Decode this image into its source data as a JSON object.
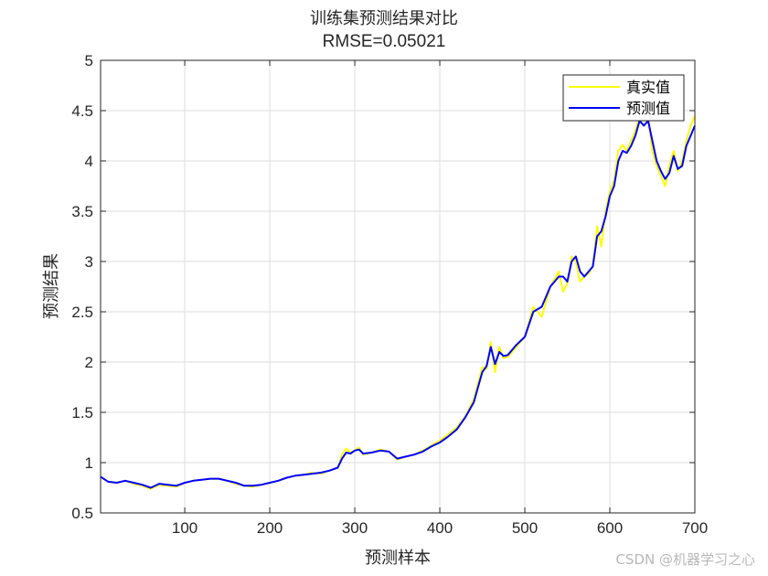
{
  "figure": {
    "title_line1": "训练集预测结果对比",
    "title_line2": "RMSE=0.05021",
    "watermark": "CSDN @机器学习之心"
  },
  "colors": {
    "true_series": "#ffff00",
    "pred_series": "#0000ff",
    "grid": "#dedede",
    "axis": "#262626"
  },
  "chart_data": {
    "type": "line",
    "title": "训练集预测结果对比",
    "subtitle": "RMSE=0.05021",
    "xlabel": "预测样本",
    "ylabel": "预测结果",
    "xlim": [
      1,
      700
    ],
    "ylim": [
      0.5,
      5
    ],
    "xticks": [
      100,
      200,
      300,
      400,
      500,
      600,
      700
    ],
    "yticks": [
      0.5,
      1,
      1.5,
      2,
      2.5,
      3,
      3.5,
      4,
      4.5,
      5
    ],
    "grid": true,
    "legend_position": "top-right",
    "x": [
      1,
      10,
      20,
      30,
      40,
      50,
      60,
      70,
      80,
      90,
      100,
      110,
      120,
      130,
      140,
      150,
      160,
      170,
      180,
      190,
      200,
      210,
      220,
      230,
      240,
      250,
      260,
      270,
      280,
      285,
      290,
      295,
      300,
      305,
      310,
      320,
      330,
      340,
      350,
      360,
      370,
      380,
      390,
      400,
      410,
      420,
      430,
      440,
      450,
      455,
      460,
      465,
      470,
      475,
      480,
      485,
      490,
      500,
      510,
      520,
      530,
      540,
      545,
      550,
      555,
      560,
      565,
      570,
      575,
      580,
      585,
      590,
      595,
      600,
      605,
      610,
      615,
      620,
      625,
      630,
      635,
      640,
      645,
      650,
      655,
      660,
      665,
      670,
      675,
      680,
      685,
      690,
      695,
      700
    ],
    "series": [
      {
        "name": "真实值",
        "values": [
          0.86,
          0.81,
          0.8,
          0.82,
          0.79,
          0.77,
          0.74,
          0.78,
          0.77,
          0.76,
          0.8,
          0.82,
          0.83,
          0.84,
          0.84,
          0.82,
          0.79,
          0.77,
          0.76,
          0.78,
          0.8,
          0.82,
          0.85,
          0.87,
          0.88,
          0.9,
          0.89,
          0.92,
          0.95,
          1.08,
          1.14,
          1.1,
          1.12,
          1.15,
          1.08,
          1.1,
          1.13,
          1.11,
          1.03,
          1.06,
          1.08,
          1.12,
          1.17,
          1.22,
          1.28,
          1.35,
          1.46,
          1.63,
          1.95,
          1.93,
          2.2,
          1.9,
          2.15,
          2.04,
          2.05,
          2.1,
          2.15,
          2.25,
          2.55,
          2.45,
          2.75,
          2.9,
          2.7,
          2.78,
          3.05,
          3.0,
          2.8,
          2.85,
          2.88,
          2.95,
          3.35,
          3.15,
          3.5,
          3.7,
          3.8,
          4.1,
          4.16,
          4.1,
          4.2,
          4.3,
          4.45,
          4.4,
          4.45,
          4.1,
          3.95,
          3.85,
          3.75,
          3.95,
          4.1,
          3.9,
          4.0,
          4.2,
          4.35,
          4.45
        ]
      },
      {
        "name": "预测值",
        "values": [
          0.86,
          0.81,
          0.8,
          0.82,
          0.8,
          0.78,
          0.75,
          0.79,
          0.78,
          0.77,
          0.8,
          0.82,
          0.83,
          0.84,
          0.84,
          0.82,
          0.8,
          0.77,
          0.77,
          0.78,
          0.8,
          0.82,
          0.85,
          0.87,
          0.88,
          0.89,
          0.9,
          0.92,
          0.95,
          1.04,
          1.1,
          1.09,
          1.12,
          1.13,
          1.09,
          1.1,
          1.12,
          1.11,
          1.04,
          1.06,
          1.08,
          1.11,
          1.16,
          1.2,
          1.26,
          1.33,
          1.45,
          1.6,
          1.9,
          1.96,
          2.15,
          1.98,
          2.1,
          2.06,
          2.07,
          2.12,
          2.17,
          2.25,
          2.5,
          2.55,
          2.75,
          2.85,
          2.85,
          2.8,
          3.0,
          3.05,
          2.9,
          2.85,
          2.9,
          2.95,
          3.25,
          3.3,
          3.45,
          3.65,
          3.75,
          4.0,
          4.1,
          4.08,
          4.15,
          4.25,
          4.4,
          4.35,
          4.4,
          4.2,
          4.0,
          3.9,
          3.82,
          3.88,
          4.05,
          3.92,
          3.95,
          4.15,
          4.25,
          4.35
        ]
      }
    ]
  }
}
